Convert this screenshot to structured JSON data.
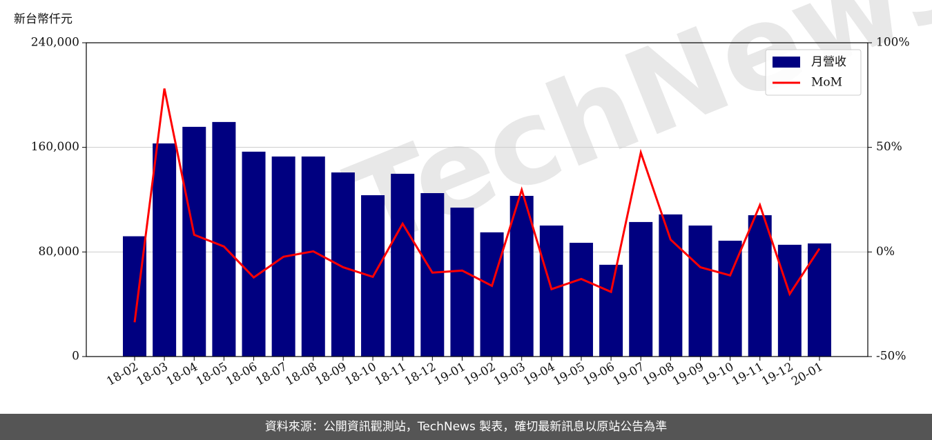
{
  "chart_data": {
    "type": "bar_line",
    "y_axis_label": "新台幣仟元",
    "watermark": "TechNews",
    "footer": "資料來源：公開資訊觀測站，TechNews 製表，確切最新訊息以原站公告為準",
    "categories": [
      "18-02",
      "18-03",
      "18-04",
      "18-05",
      "18-06",
      "18-07",
      "18-08",
      "18-09",
      "18-10",
      "18-11",
      "18-12",
      "19-01",
      "19-02",
      "19-03",
      "19-04",
      "19-05",
      "19-06",
      "19-07",
      "19-08",
      "19-09",
      "19-10",
      "19-11",
      "19-12",
      "20-01"
    ],
    "series": [
      {
        "name": "月營收",
        "type": "bar",
        "color": "#000080",
        "values": [
          92000,
          163000,
          175700,
          179400,
          156700,
          153000,
          153000,
          140800,
          123400,
          139800,
          125000,
          113900,
          95000,
          122900,
          100200,
          87000,
          70200,
          102900,
          108700,
          100200,
          88600,
          108100,
          85500,
          86500
        ]
      },
      {
        "name": "MoM",
        "type": "line",
        "axis": "y2",
        "color": "#ff0000",
        "values": [
          -33.6,
          78.1,
          8.2,
          2.6,
          -12.2,
          -2.3,
          0.3,
          -7.3,
          -11.9,
          13.5,
          -9.9,
          -8.9,
          -16.2,
          29.7,
          -17.8,
          -12.9,
          -19.1,
          47.5,
          5.9,
          -7.3,
          -11.2,
          22.4,
          -20.1,
          1.6
        ]
      }
    ],
    "ylim": [
      0,
      240000
    ],
    "yticks": [
      0,
      {
        "value": 80000,
        "label": "80,000"
      },
      {
        "value": 160000,
        "label": "160,000"
      },
      {
        "value": 240000,
        "label": "240,000"
      }
    ],
    "y2lim": [
      -50,
      100
    ],
    "y2ticks": [
      {
        "value": -50,
        "label": "-50%"
      },
      {
        "value": 0,
        "label": "0%"
      },
      {
        "value": 50,
        "label": "50%"
      },
      {
        "value": 100,
        "label": "100%"
      }
    ],
    "grid": true,
    "legend": "upper right"
  }
}
